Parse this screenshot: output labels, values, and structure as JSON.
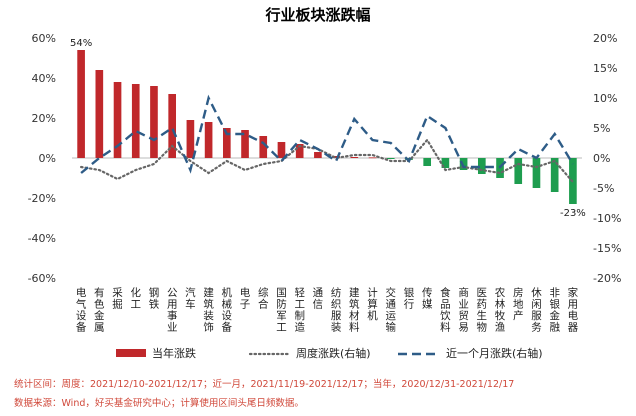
{
  "chart_data": {
    "type": "bar",
    "title": "行业板块涨跌幅",
    "categories": [
      "电气设备",
      "有色金属",
      "采掘",
      "化工",
      "钢铁",
      "公用事业",
      "汽车",
      "建筑装饰",
      "机械设备",
      "电子",
      "综合",
      "国防军工",
      "轻工制造",
      "通信",
      "纺织服装",
      "建筑材料",
      "计算机",
      "交通运输",
      "银行",
      "传媒",
      "食品饮料",
      "商业贸易",
      "医药生物",
      "农林牧渔",
      "房地产",
      "休闲服务",
      "非银金融",
      "家用电器"
    ],
    "left_axis": {
      "ylim": [
        -60,
        60
      ],
      "ticks": [
        "-60%",
        "-40%",
        "-20%",
        "0%",
        "20%",
        "40%",
        "60%"
      ]
    },
    "right_axis": {
      "ylim": [
        -20,
        20
      ],
      "ticks": [
        "-20%",
        "-15%",
        "-10%",
        "-5%",
        "0%",
        "5%",
        "10%",
        "15%",
        "20%"
      ]
    },
    "series": [
      {
        "name": "当年涨跌",
        "axis": "left",
        "kind": "bar",
        "values": [
          54,
          44,
          38,
          37,
          36,
          32,
          19,
          18,
          15,
          14,
          11,
          8,
          7,
          3,
          1,
          0.5,
          0.3,
          -0.5,
          -1,
          -4,
          -5,
          -6,
          -8,
          -10,
          -13,
          -15,
          -17,
          -23
        ]
      },
      {
        "name": "周度涨跌(右轴)",
        "axis": "right",
        "kind": "line-dotted",
        "values": [
          -1.5,
          -2,
          -3.5,
          -2,
          -1,
          2,
          -0.5,
          -2.5,
          -0.5,
          -2,
          -1,
          -0.5,
          2,
          1.5,
          0,
          0.5,
          0.5,
          -0.5,
          -0.5,
          3,
          -2,
          -1.5,
          -2,
          -2.5,
          -1,
          -1.5,
          -0.5,
          -4
        ]
      },
      {
        "name": "近一个月涨跌(右轴)",
        "axis": "right",
        "kind": "line-dashed",
        "values": [
          -2.5,
          0,
          2,
          4.5,
          3,
          5,
          -2,
          10,
          4,
          4,
          2.5,
          -0.5,
          3,
          1.5,
          -0.5,
          6.5,
          3,
          2.5,
          -0.5,
          7,
          5,
          -1.5,
          -1.5,
          -1.5,
          1.5,
          0,
          4,
          -1
        ]
      }
    ],
    "data_labels": [
      {
        "series": 0,
        "index": 0,
        "text": "54%"
      },
      {
        "series": 0,
        "index": 27,
        "text": "-23%"
      }
    ],
    "legend_position": "bottom",
    "grid": false,
    "colors": {
      "bar_positive": "#c0282b",
      "bar_negative": "#1e9d4f",
      "weekly": "#666666",
      "monthly": "#2e5c87"
    }
  },
  "notes": {
    "line1": "统计区间：周度：2021/12/10-2021/12/17；近一月，2021/11/19-2021/12/17；当年，2020/12/31-2021/12/17",
    "line2": "数据来源：Wind，好买基金研究中心；计算使用区间头尾日频数据。"
  }
}
